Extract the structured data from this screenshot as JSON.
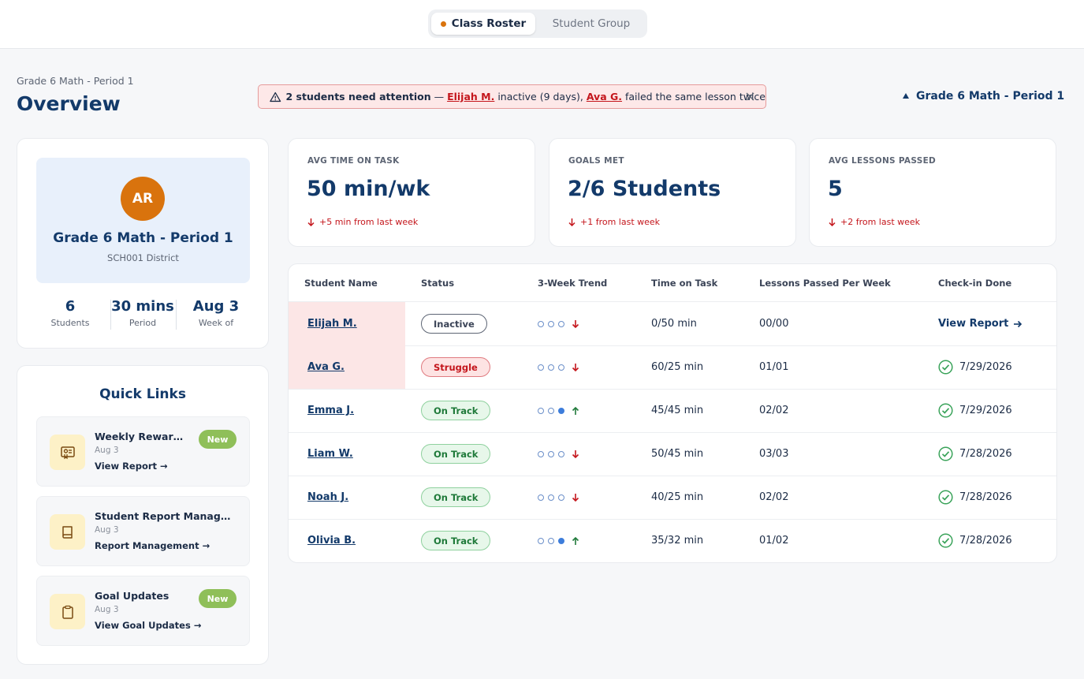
{
  "tabs": {
    "class_roster": "Class Roster",
    "student_group": "Student Group"
  },
  "header": {
    "breadcrumb": "Grade 6 Math - Period 1",
    "title": "Overview",
    "class_selector": "Grade 6 Math - Period 1"
  },
  "alert": {
    "lead": "2 students need attention",
    "dash": " — ",
    "student1": "Elijah M.",
    "text1": " inactive (9 days), ",
    "student2": "Ava G.",
    "text2": " failed the same lesson twice"
  },
  "profile": {
    "initials": "AR",
    "name": "Grade 6 Math - Period 1",
    "district": "SCH001 District",
    "stats": [
      {
        "value": "6",
        "label": "Students"
      },
      {
        "value": "30 mins",
        "label": "Period"
      },
      {
        "value": "Aug 3",
        "label": "Week of"
      }
    ]
  },
  "quick_links": {
    "title": "Quick Links",
    "items": [
      {
        "title": "Weekly Reward R...",
        "date": "Aug 3",
        "link": "View Report →",
        "badge": "New",
        "icon": "certificate-icon"
      },
      {
        "title": "Student Report Managem...",
        "date": "Aug 3",
        "link": "Report Management →",
        "badge": "",
        "icon": "book-icon"
      },
      {
        "title": "Goal Updates",
        "date": "Aug 3",
        "link": "View Goal Updates →",
        "badge": "New",
        "icon": "clipboard-icon"
      }
    ]
  },
  "metrics": [
    {
      "label": "AVG TIME ON TASK",
      "value": "50 min/wk",
      "delta": "+5 min from last week"
    },
    {
      "label": "GOALS MET",
      "value": "2/6 Students",
      "delta": "+1 from last week"
    },
    {
      "label": "AVG LESSONS PASSED",
      "value": "5",
      "delta": "+2 from last week"
    }
  ],
  "table": {
    "headers": [
      "Student Name",
      "Status",
      "3-Week Trend",
      "Time on Task",
      "Lessons Passed Per Week",
      "Check-in Done"
    ],
    "rows": [
      {
        "name": "Elijah M.",
        "status": "Inactive",
        "status_kind": "inactive",
        "trend_dots": [
          false,
          false,
          false
        ],
        "trend_dir": "down",
        "time": "0/50 min",
        "lessons": "00/00",
        "checkin": "View Report",
        "checkin_kind": "link",
        "highlight": true
      },
      {
        "name": "Ava G.",
        "status": "Struggle",
        "status_kind": "struggle",
        "trend_dots": [
          false,
          false,
          false
        ],
        "trend_dir": "down",
        "time": "60/25 min",
        "lessons": "01/01",
        "checkin": "7/29/2026",
        "checkin_kind": "done",
        "highlight": true
      },
      {
        "name": "Emma J.",
        "status": "On Track",
        "status_kind": "ontrack",
        "trend_dots": [
          false,
          false,
          true
        ],
        "trend_dir": "up",
        "time": "45/45 min",
        "lessons": "02/02",
        "checkin": "7/29/2026",
        "checkin_kind": "done",
        "highlight": false
      },
      {
        "name": "Liam W.",
        "status": "On Track",
        "status_kind": "ontrack",
        "trend_dots": [
          false,
          false,
          false
        ],
        "trend_dir": "down",
        "time": "50/45 min",
        "lessons": "03/03",
        "checkin": "7/28/2026",
        "checkin_kind": "done",
        "highlight": false
      },
      {
        "name": "Noah J.",
        "status": "On Track",
        "status_kind": "ontrack",
        "trend_dots": [
          false,
          false,
          false
        ],
        "trend_dir": "down",
        "time": "40/25 min",
        "lessons": "02/02",
        "checkin": "7/28/2026",
        "checkin_kind": "done",
        "highlight": false
      },
      {
        "name": "Olivia B.",
        "status": "On Track",
        "status_kind": "ontrack",
        "trend_dots": [
          false,
          false,
          true
        ],
        "trend_dir": "up",
        "time": "35/32 min",
        "lessons": "01/02",
        "checkin": "7/28/2026",
        "checkin_kind": "done",
        "highlight": false
      }
    ]
  },
  "colors": {
    "primary": "#133a6a",
    "accent_orange": "#d9730d",
    "alert_red": "#c4161c",
    "success_green": "#1f7a3a",
    "new_badge": "#8fbf59"
  }
}
